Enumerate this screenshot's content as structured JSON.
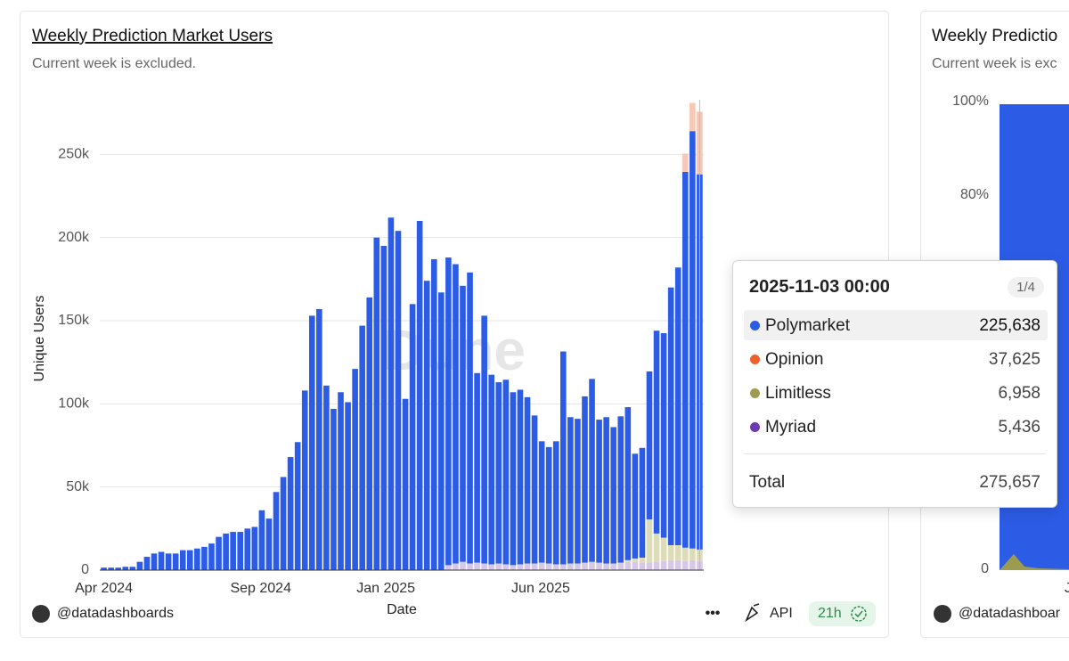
{
  "chart_data": [
    {
      "type": "stacked_bar",
      "title": "Weekly Prediction Market Users",
      "subtitle": "Current week is excluded.",
      "watermark": "Dune",
      "x_label": "Date",
      "y_label": "Unique Users",
      "x": [
        "2024-04-01",
        "2024-04-08",
        "2024-04-15",
        "2024-04-22",
        "2024-04-29",
        "2024-05-06",
        "2024-05-13",
        "2024-05-20",
        "2024-05-27",
        "2024-06-03",
        "2024-06-10",
        "2024-06-17",
        "2024-06-24",
        "2024-07-01",
        "2024-07-08",
        "2024-07-15",
        "2024-07-22",
        "2024-07-29",
        "2024-08-05",
        "2024-08-12",
        "2024-08-19",
        "2024-08-26",
        "2024-09-02",
        "2024-09-09",
        "2024-09-16",
        "2024-09-23",
        "2024-09-30",
        "2024-10-07",
        "2024-10-14",
        "2024-10-21",
        "2024-10-28",
        "2024-11-04",
        "2024-11-11",
        "2024-11-18",
        "2024-11-25",
        "2024-12-02",
        "2024-12-09",
        "2024-12-16",
        "2024-12-23",
        "2024-12-30",
        "2025-01-06",
        "2025-01-13",
        "2025-01-20",
        "2025-01-27",
        "2025-02-03",
        "2025-02-10",
        "2025-02-17",
        "2025-02-24",
        "2025-03-03",
        "2025-03-10",
        "2025-03-17",
        "2025-03-24",
        "2025-03-31",
        "2025-04-07",
        "2025-04-14",
        "2025-04-21",
        "2025-04-28",
        "2025-05-05",
        "2025-05-12",
        "2025-05-19",
        "2025-05-26",
        "2025-06-02",
        "2025-06-09",
        "2025-06-16",
        "2025-06-23",
        "2025-06-30",
        "2025-07-07",
        "2025-07-14",
        "2025-07-21",
        "2025-07-28",
        "2025-08-04",
        "2025-08-11",
        "2025-08-18",
        "2025-08-25",
        "2025-09-01",
        "2025-09-08",
        "2025-09-15",
        "2025-09-22",
        "2025-09-29",
        "2025-10-06",
        "2025-10-13",
        "2025-10-20",
        "2025-10-27",
        "2025-11-03"
      ],
      "xlim": [
        "2024-03-28",
        "2025-11-07"
      ],
      "xticks": [
        {
          "value": "2024-04-01",
          "label": "Apr 2024"
        },
        {
          "value": "2024-09-01",
          "label": "Sep 2024"
        },
        {
          "value": "2025-01-01",
          "label": "Jan 2025"
        },
        {
          "value": "2025-06-01",
          "label": "Jun 2025"
        }
      ],
      "ylim": [
        0,
        285000
      ],
      "yticks": [
        0,
        {
          "value": 50000,
          "label": "50k"
        },
        {
          "value": 100000,
          "label": "100k"
        },
        {
          "value": 150000,
          "label": "150k"
        },
        {
          "value": 200000,
          "label": "200k"
        },
        {
          "value": 250000,
          "label": "250k"
        }
      ],
      "grid": true,
      "series": [
        {
          "name": "Myriad",
          "color": "#d6c8e6",
          "values": [
            0,
            0,
            0,
            0,
            0,
            0,
            0,
            0,
            0,
            0,
            0,
            0,
            0,
            0,
            0,
            0,
            0,
            0,
            0,
            0,
            0,
            0,
            0,
            0,
            0,
            0,
            0,
            0,
            0,
            0,
            0,
            0,
            0,
            0,
            0,
            0,
            0,
            0,
            0,
            0,
            0,
            0,
            0,
            0,
            0,
            0,
            0,
            0,
            3000,
            4000,
            5000,
            4000,
            4500,
            4000,
            3500,
            4000,
            3500,
            3000,
            3500,
            4000,
            4000,
            4500,
            4000,
            3500,
            3500,
            4000,
            4000,
            4500,
            5000,
            4500,
            4000,
            4000,
            4500,
            5000,
            5000,
            4500,
            4500,
            5000,
            5500,
            6000,
            6000,
            5500,
            6000,
            5436
          ]
        },
        {
          "name": "Limitless",
          "color": "#dddcb9",
          "values": [
            0,
            0,
            0,
            0,
            0,
            0,
            0,
            0,
            0,
            0,
            0,
            0,
            0,
            0,
            0,
            0,
            0,
            0,
            0,
            0,
            0,
            0,
            0,
            0,
            0,
            0,
            0,
            0,
            0,
            0,
            0,
            0,
            0,
            0,
            0,
            0,
            0,
            0,
            0,
            0,
            0,
            0,
            0,
            0,
            0,
            0,
            0,
            0,
            0,
            0,
            0,
            0,
            0,
            0,
            0,
            0,
            0,
            0,
            0,
            0,
            0,
            0,
            0,
            0,
            0,
            0,
            0,
            0,
            0,
            0,
            0,
            0,
            0,
            1000,
            2000,
            3000,
            26000,
            17000,
            14000,
            9000,
            9000,
            8000,
            7000,
            6958
          ]
        },
        {
          "name": "Polymarket",
          "color": "#2c5ce6",
          "values": [
            1500,
            1500,
            1500,
            2000,
            2000,
            5000,
            8000,
            10000,
            11000,
            10000,
            10000,
            12000,
            12000,
            13000,
            14000,
            16000,
            20000,
            22000,
            23000,
            23000,
            25000,
            26000,
            36000,
            31000,
            47000,
            56000,
            68000,
            77000,
            108000,
            153000,
            157000,
            111000,
            97000,
            107000,
            101000,
            121000,
            147000,
            164000,
            200000,
            195000,
            212000,
            204000,
            103000,
            160000,
            210000,
            174000,
            187000,
            167000,
            185000,
            180000,
            166000,
            175000,
            114000,
            149000,
            114000,
            109000,
            111000,
            104000,
            105000,
            100000,
            89000,
            73000,
            70000,
            74000,
            128000,
            88000,
            87000,
            100000,
            110000,
            86000,
            88000,
            82000,
            88000,
            92000,
            63000,
            66000,
            89000,
            122000,
            123000,
            155000,
            167000,
            226000,
            251000,
            225638
          ]
        },
        {
          "name": "Opinion",
          "color": "#f6c8b6",
          "values": [
            0,
            0,
            0,
            0,
            0,
            0,
            0,
            0,
            0,
            0,
            0,
            0,
            0,
            0,
            0,
            0,
            0,
            0,
            0,
            0,
            0,
            0,
            0,
            0,
            0,
            0,
            0,
            0,
            0,
            0,
            0,
            0,
            0,
            0,
            0,
            0,
            0,
            0,
            0,
            0,
            0,
            0,
            0,
            0,
            0,
            0,
            0,
            0,
            0,
            0,
            0,
            0,
            0,
            0,
            0,
            0,
            0,
            0,
            0,
            0,
            0,
            0,
            0,
            0,
            0,
            0,
            0,
            0,
            0,
            0,
            0,
            0,
            0,
            0,
            0,
            0,
            0,
            0,
            0,
            0,
            0,
            11000,
            17000,
            37625
          ]
        }
      ]
    },
    {
      "type": "area",
      "title": "Weekly Predictio",
      "subtitle": "Current week is exc",
      "categories": [
        "Ju"
      ],
      "ylim": [
        0,
        100
      ],
      "yticks": [
        0,
        {
          "value": 80,
          "label": "80%"
        },
        {
          "value": 100,
          "label": "100%"
        }
      ]
    }
  ],
  "tooltip": {
    "title": "2025-11-03 00:00",
    "page": "1/4",
    "rows": [
      {
        "name": "Polymarket",
        "value": "225,638",
        "color": "#2c5ce6"
      },
      {
        "name": "Opinion",
        "value": "37,625",
        "color": "#f0602c"
      },
      {
        "name": "Limitless",
        "value": "6,958",
        "color": "#9c9c50"
      },
      {
        "name": "Myriad",
        "value": "5,436",
        "color": "#6a3cb0"
      }
    ],
    "total_label": "Total",
    "total": "275,657"
  },
  "footers": [
    {
      "handle": "@datadashboards",
      "api": "API",
      "age": "21h"
    },
    {
      "handle": "@datadashboar"
    }
  ]
}
